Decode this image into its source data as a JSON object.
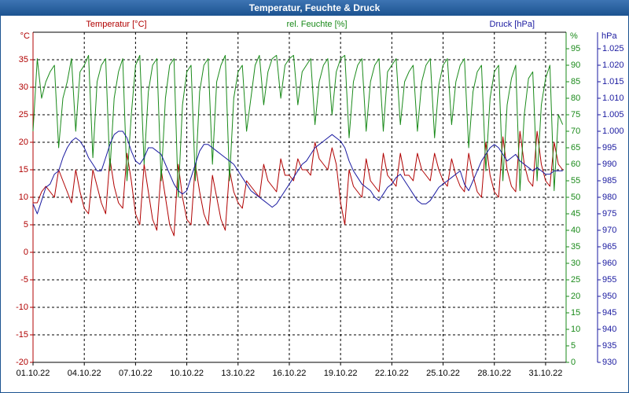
{
  "chart_data": {
    "type": "line",
    "title": "Temperatur, Feuchte & Druck",
    "ylabel": "°C",
    "y2label": "%",
    "y3label": "hPa",
    "grid": true,
    "x": [
      1,
      1.25,
      1.5,
      1.75,
      2,
      2.25,
      2.5,
      2.75,
      3,
      3.25,
      3.5,
      3.75,
      4,
      4.25,
      4.5,
      4.75,
      5,
      5.25,
      5.5,
      5.75,
      6,
      6.25,
      6.5,
      6.75,
      7,
      7.25,
      7.5,
      7.75,
      8,
      8.25,
      8.5,
      8.75,
      9,
      9.25,
      9.5,
      9.75,
      10,
      10.25,
      10.5,
      10.75,
      11,
      11.25,
      11.5,
      11.75,
      12,
      12.25,
      12.5,
      12.75,
      13,
      13.25,
      13.5,
      13.75,
      14,
      14.25,
      14.5,
      14.75,
      15,
      15.25,
      15.5,
      15.75,
      16,
      16.25,
      16.5,
      16.75,
      17,
      17.25,
      17.5,
      17.75,
      18,
      18.25,
      18.5,
      18.75,
      19,
      19.25,
      19.5,
      19.75,
      20,
      20.25,
      20.5,
      20.75,
      21,
      21.25,
      21.5,
      21.75,
      22,
      22.25,
      22.5,
      22.75,
      23,
      23.25,
      23.5,
      23.75,
      24,
      24.25,
      24.5,
      24.75,
      25,
      25.25,
      25.5,
      25.75,
      26,
      26.25,
      26.5,
      26.75,
      27,
      27.25,
      27.5,
      27.75,
      28,
      28.25,
      28.5,
      28.75,
      29,
      29.25,
      29.5,
      29.75,
      30,
      30.25,
      30.5,
      30.75,
      31,
      31.25,
      31.5,
      31.75,
      32
    ],
    "xlim": [
      1,
      32.2
    ],
    "xticks": [
      {
        "value": 1,
        "label": "01.10.22"
      },
      {
        "value": 4,
        "label": "04.10.22"
      },
      {
        "value": 7,
        "label": "07.10.22"
      },
      {
        "value": 10,
        "label": "10.10.22"
      },
      {
        "value": 13,
        "label": "13.10.22"
      },
      {
        "value": 16,
        "label": "16.10.22"
      },
      {
        "value": 19,
        "label": "19.10.22"
      },
      {
        "value": 22,
        "label": "22.10.22"
      },
      {
        "value": 25,
        "label": "25.10.22"
      },
      {
        "value": 28,
        "label": "28.10.22"
      },
      {
        "value": 31,
        "label": "31.10.22"
      }
    ],
    "ylim": [
      -20,
      40
    ],
    "yticks": [
      -20,
      -15,
      -10,
      -5,
      0,
      5,
      10,
      15,
      20,
      25,
      30,
      35
    ],
    "y2lim": [
      0,
      100
    ],
    "y2ticks": [
      0,
      5,
      10,
      15,
      20,
      25,
      30,
      35,
      40,
      45,
      50,
      55,
      60,
      65,
      70,
      75,
      80,
      85,
      90,
      95
    ],
    "y3lim": [
      930,
      1030
    ],
    "y3ticks": [
      930,
      935,
      940,
      945,
      950,
      955,
      960,
      965,
      970,
      975,
      980,
      985,
      990,
      995,
      {
        "value": 1000,
        "label": "1.000"
      },
      {
        "value": 1005,
        "label": "1.005"
      },
      {
        "value": 1010,
        "label": "1.010"
      },
      {
        "value": 1015,
        "label": "1.015"
      },
      {
        "value": 1020,
        "label": "1.020"
      },
      {
        "value": 1025,
        "label": "1.025"
      }
    ],
    "series": [
      {
        "name": "Temperatur [°C]",
        "color": "#b00000",
        "axis": "y",
        "values": [
          9,
          9,
          11,
          12,
          11,
          10,
          15,
          13,
          11,
          9,
          15,
          11,
          8,
          7,
          15,
          12,
          9,
          7,
          17,
          12,
          9,
          8,
          18,
          13,
          7,
          5,
          16,
          11,
          6,
          4,
          15,
          10,
          5,
          3,
          16,
          10,
          6,
          5,
          16,
          11,
          7,
          5,
          14,
          10,
          6,
          4,
          15,
          11,
          9,
          8,
          13,
          12,
          11,
          10,
          16,
          13,
          12,
          11,
          17,
          14,
          14,
          13,
          17,
          15,
          15,
          14,
          20,
          17,
          16,
          15,
          19,
          16,
          9,
          5,
          15,
          12,
          11,
          10,
          17,
          13,
          12,
          11,
          18,
          14,
          13,
          12,
          18,
          14,
          14,
          13,
          18,
          15,
          14,
          13,
          18,
          15,
          13,
          12,
          17,
          14,
          12,
          11,
          18,
          14,
          11,
          10,
          20,
          14,
          11,
          10,
          21,
          15,
          12,
          11,
          22,
          16,
          13,
          12,
          22,
          16,
          13,
          12,
          20,
          16,
          15
        ]
      },
      {
        "name": "rel. Feuchte [%]",
        "color": "#1a8a1a",
        "axis": "y2",
        "values": [
          70,
          92,
          80,
          85,
          88,
          90,
          65,
          80,
          85,
          92,
          70,
          88,
          90,
          93,
          62,
          85,
          90,
          92,
          58,
          80,
          88,
          92,
          55,
          75,
          90,
          93,
          60,
          82,
          90,
          92,
          55,
          80,
          90,
          92,
          50,
          78,
          88,
          90,
          55,
          82,
          90,
          92,
          60,
          85,
          90,
          93,
          55,
          80,
          88,
          90,
          70,
          80,
          90,
          93,
          78,
          88,
          92,
          93,
          80,
          90,
          92,
          93,
          78,
          88,
          90,
          92,
          72,
          85,
          90,
          92,
          75,
          88,
          92,
          93,
          68,
          85,
          90,
          92,
          70,
          85,
          90,
          92,
          70,
          88,
          90,
          92,
          72,
          85,
          88,
          90,
          70,
          85,
          90,
          92,
          68,
          84,
          90,
          92,
          72,
          85,
          90,
          92,
          65,
          82,
          88,
          90,
          58,
          80,
          88,
          90,
          55,
          78,
          86,
          90,
          52,
          75,
          86,
          88,
          55,
          78,
          86,
          90,
          52,
          75,
          72
        ]
      },
      {
        "name": "Druck [hPa]",
        "color": "#1a1aa0",
        "axis": "y3",
        "values": [
          978,
          975,
          979,
          983,
          984,
          987,
          988,
          992,
          995,
          997,
          998,
          997,
          995,
          992,
          990,
          988,
          988,
          992,
          996,
          999,
          1000,
          1000,
          998,
          994,
          991,
          990,
          992,
          995,
          995,
          994,
          993,
          990,
          987,
          984,
          982,
          981,
          982,
          986,
          990,
          994,
          996,
          996,
          995,
          994,
          993,
          992,
          991,
          990,
          988,
          986,
          984,
          982,
          981,
          980,
          979,
          978,
          977,
          978,
          980,
          982,
          984,
          986,
          988,
          990,
          991,
          993,
          995,
          996,
          997,
          998,
          999,
          998,
          997,
          995,
          991,
          988,
          986,
          984,
          983,
          982,
          980,
          979,
          981,
          983,
          984,
          986,
          987,
          985,
          983,
          981,
          979,
          978,
          978,
          979,
          981,
          983,
          984,
          985,
          986,
          987,
          988,
          984,
          982,
          985,
          988,
          991,
          993,
          995,
          996,
          995,
          993,
          991,
          992,
          993,
          991,
          990,
          989,
          988,
          989,
          988,
          987,
          987,
          988,
          988,
          988
        ]
      }
    ]
  }
}
